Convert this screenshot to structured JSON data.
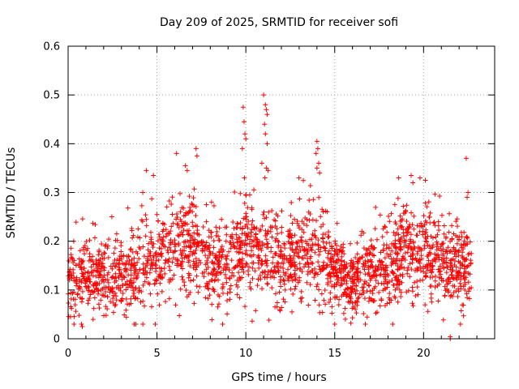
{
  "chart_data": {
    "type": "scatter",
    "title": "Day 209 of 2025, SRMTID for receiver sofi",
    "xlabel": "GPS time / hours",
    "ylabel": "SRMTID / TECUs",
    "xlim": [
      0,
      24
    ],
    "ylim": [
      0,
      0.6
    ],
    "x_ticks": [
      0,
      5,
      10,
      15,
      20
    ],
    "x_tick_labels": [
      "0",
      "5",
      "10",
      "15",
      "20"
    ],
    "y_ticks": [
      0,
      0.1,
      0.2,
      0.3,
      0.4,
      0.5,
      0.6
    ],
    "y_tick_labels": [
      "0",
      "0.1",
      "0.2",
      "0.3",
      "0.4",
      "0.5",
      "0.6"
    ],
    "grid": true,
    "marker": "+",
    "colors": {
      "series": "#ff0000",
      "grid": "#a0a0a0",
      "axes": "#000000"
    },
    "series": [
      {
        "name": "SRMTID",
        "profile_points": [
          {
            "x": 0.0,
            "y": 0.11,
            "spread": 0.05
          },
          {
            "x": 1.0,
            "y": 0.13,
            "spread": 0.05
          },
          {
            "x": 2.0,
            "y": 0.13,
            "spread": 0.05
          },
          {
            "x": 3.0,
            "y": 0.12,
            "spread": 0.05
          },
          {
            "x": 4.0,
            "y": 0.15,
            "spread": 0.06
          },
          {
            "x": 5.0,
            "y": 0.16,
            "spread": 0.06
          },
          {
            "x": 6.0,
            "y": 0.18,
            "spread": 0.07
          },
          {
            "x": 7.0,
            "y": 0.19,
            "spread": 0.07
          },
          {
            "x": 8.0,
            "y": 0.15,
            "spread": 0.06
          },
          {
            "x": 9.0,
            "y": 0.15,
            "spread": 0.06
          },
          {
            "x": 10.0,
            "y": 0.19,
            "spread": 0.07
          },
          {
            "x": 11.0,
            "y": 0.18,
            "spread": 0.07
          },
          {
            "x": 12.0,
            "y": 0.15,
            "spread": 0.06
          },
          {
            "x": 13.0,
            "y": 0.17,
            "spread": 0.06
          },
          {
            "x": 14.0,
            "y": 0.18,
            "spread": 0.07
          },
          {
            "x": 15.0,
            "y": 0.14,
            "spread": 0.05
          },
          {
            "x": 16.0,
            "y": 0.11,
            "spread": 0.05
          },
          {
            "x": 17.0,
            "y": 0.14,
            "spread": 0.05
          },
          {
            "x": 18.0,
            "y": 0.15,
            "spread": 0.06
          },
          {
            "x": 19.0,
            "y": 0.18,
            "spread": 0.06
          },
          {
            "x": 20.0,
            "y": 0.17,
            "spread": 0.06
          },
          {
            "x": 21.0,
            "y": 0.15,
            "spread": 0.06
          },
          {
            "x": 22.0,
            "y": 0.15,
            "spread": 0.06
          },
          {
            "x": 22.7,
            "y": 0.14,
            "spread": 0.05
          }
        ],
        "sample_count": 2300,
        "x_range": [
          0,
          22.7
        ],
        "outliers": [
          {
            "x": 9.85,
            "y": 0.475
          },
          {
            "x": 9.9,
            "y": 0.445
          },
          {
            "x": 9.95,
            "y": 0.42
          },
          {
            "x": 9.8,
            "y": 0.39
          },
          {
            "x": 10.0,
            "y": 0.41
          },
          {
            "x": 11.0,
            "y": 0.5
          },
          {
            "x": 11.1,
            "y": 0.48
          },
          {
            "x": 11.15,
            "y": 0.47
          },
          {
            "x": 11.2,
            "y": 0.46
          },
          {
            "x": 11.05,
            "y": 0.44
          },
          {
            "x": 11.1,
            "y": 0.42
          },
          {
            "x": 11.2,
            "y": 0.4
          },
          {
            "x": 11.15,
            "y": 0.35
          },
          {
            "x": 11.25,
            "y": 0.345
          },
          {
            "x": 10.9,
            "y": 0.36
          },
          {
            "x": 14.0,
            "y": 0.405
          },
          {
            "x": 14.05,
            "y": 0.39
          },
          {
            "x": 13.95,
            "y": 0.38
          },
          {
            "x": 14.1,
            "y": 0.36
          },
          {
            "x": 14.0,
            "y": 0.35
          },
          {
            "x": 14.15,
            "y": 0.34
          },
          {
            "x": 7.2,
            "y": 0.39
          },
          {
            "x": 7.25,
            "y": 0.375
          },
          {
            "x": 6.1,
            "y": 0.38
          },
          {
            "x": 6.6,
            "y": 0.355
          },
          {
            "x": 6.7,
            "y": 0.345
          },
          {
            "x": 4.4,
            "y": 0.345
          },
          {
            "x": 4.8,
            "y": 0.335
          },
          {
            "x": 4.2,
            "y": 0.3
          },
          {
            "x": 18.6,
            "y": 0.33
          },
          {
            "x": 19.3,
            "y": 0.335
          },
          {
            "x": 19.8,
            "y": 0.33
          },
          {
            "x": 20.1,
            "y": 0.325
          },
          {
            "x": 19.4,
            "y": 0.32
          },
          {
            "x": 22.4,
            "y": 0.37
          },
          {
            "x": 22.5,
            "y": 0.3
          },
          {
            "x": 22.45,
            "y": 0.29
          },
          {
            "x": 15.0,
            "y": 0.03
          },
          {
            "x": 15.6,
            "y": 0.04
          },
          {
            "x": 0.8,
            "y": 0.025
          },
          {
            "x": 21.5,
            "y": 0.0
          },
          {
            "x": 21.5,
            "y": 0.004
          }
        ]
      }
    ]
  }
}
